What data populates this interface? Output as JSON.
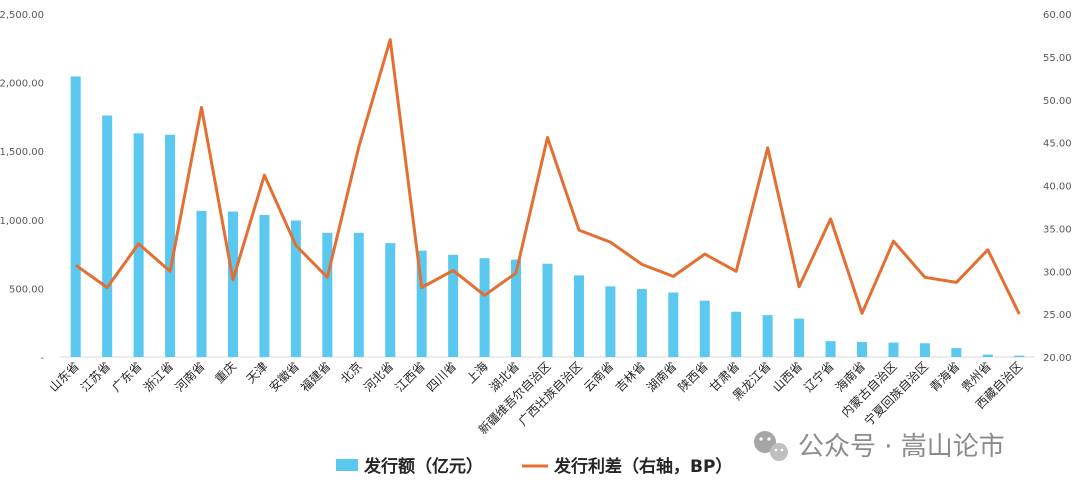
{
  "chart_data": {
    "type": "bar+line",
    "categories": [
      "山东省",
      "江苏省",
      "广东省",
      "浙江省",
      "河南省",
      "重庆",
      "天津",
      "安徽省",
      "福建省",
      "北京",
      "河北省",
      "江西省",
      "四川省",
      "上海",
      "湖北省",
      "新疆维吾尔自治区",
      "广西壮族自治区",
      "云南省",
      "吉林省",
      "湖南省",
      "陕西省",
      "甘肃省",
      "黑龙江省",
      "山西省",
      "辽宁省",
      "海南省",
      "内蒙古自治区",
      "宁夏回族自治区",
      "青海省",
      "贵州省",
      "西藏自治区"
    ],
    "series": [
      {
        "name": "发行额（亿元）",
        "type": "bar",
        "axis": "left",
        "color": "#5bc8f0",
        "values": [
          2045,
          1760,
          1630,
          1620,
          1065,
          1060,
          1035,
          995,
          905,
          905,
          830,
          775,
          745,
          720,
          710,
          680,
          595,
          515,
          495,
          470,
          410,
          330,
          305,
          280,
          115,
          110,
          105,
          100,
          65,
          18,
          10
        ]
      },
      {
        "name": "发行利差（右轴，BP）",
        "type": "line",
        "axis": "right",
        "color": "#e46f32",
        "values": [
          30.7,
          28.1,
          33.2,
          30.0,
          49.1,
          29.0,
          41.2,
          33.0,
          29.3,
          44.5,
          57.0,
          28.1,
          30.1,
          27.2,
          29.8,
          45.6,
          34.8,
          33.4,
          30.8,
          29.4,
          32.0,
          30.0,
          44.4,
          28.2,
          36.1,
          25.1,
          33.5,
          29.3,
          28.7,
          32.5,
          25.0
        ]
      }
    ],
    "y_left": {
      "ylim": [
        0,
        2500
      ],
      "ticks": [
        "-",
        "500.00",
        "1,000.00",
        "1,500.00",
        "2,000.00",
        "2,500.00"
      ]
    },
    "y_right": {
      "ylim": [
        20,
        60
      ],
      "ticks": [
        "20.00",
        "25.00",
        "30.00",
        "35.00",
        "40.00",
        "45.00",
        "50.00",
        "55.00",
        "60.00"
      ]
    },
    "legend": {
      "position": "bottom",
      "items": [
        "发行额（亿元）",
        "发行利差（右轴，BP）"
      ]
    },
    "grid": false
  },
  "watermark": {
    "icon": "wechat-icon",
    "text": "公众号 · 嵩山论市"
  }
}
